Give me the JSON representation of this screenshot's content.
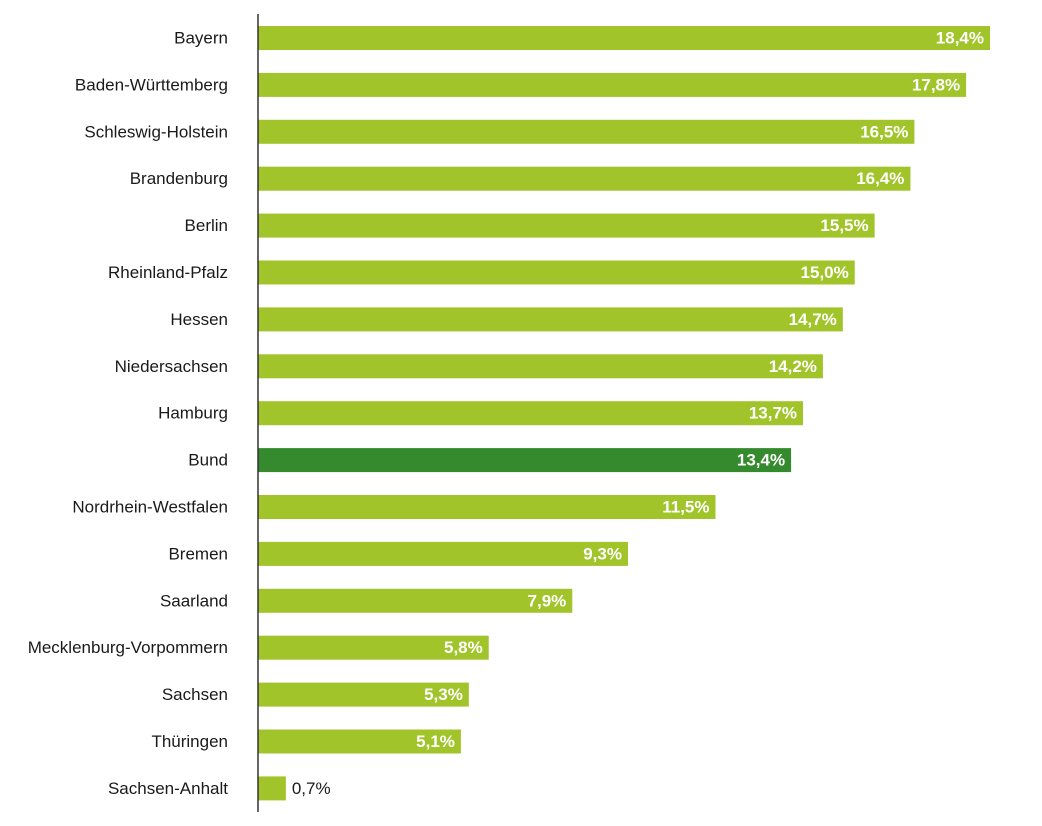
{
  "chart_data": {
    "type": "bar",
    "orientation": "horizontal",
    "categories": [
      "Bayern",
      "Baden-Württemberg",
      "Schleswig-Holstein",
      "Brandenburg",
      "Berlin",
      "Rheinland-Pfalz",
      "Hessen",
      "Niedersachsen",
      "Hamburg",
      "Bund",
      "Nordrhein-Westfalen",
      "Bremen",
      "Saarland",
      "Mecklenburg-Vorpommern",
      "Sachsen",
      "Thüringen",
      "Sachsen-Anhalt"
    ],
    "values": [
      18.4,
      17.8,
      16.5,
      16.4,
      15.5,
      15.0,
      14.7,
      14.2,
      13.7,
      13.4,
      11.5,
      9.3,
      7.9,
      5.8,
      5.3,
      5.1,
      0.7
    ],
    "value_labels": [
      "18,4%",
      "17,8%",
      "16,5%",
      "16,4%",
      "15,5%",
      "15,0%",
      "14,7%",
      "14,2%",
      "13,7%",
      "13,4%",
      "11,5%",
      "9,3%",
      "7,9%",
      "5,8%",
      "5,3%",
      "5,1%",
      "0,7%"
    ],
    "unit": "%",
    "highlight_category": "Bund",
    "xlim": [
      0,
      18.4
    ],
    "grid": false,
    "legend": "none",
    "colors": {
      "bar": "#a1c42a",
      "highlight": "#348a2c",
      "axis": "#333333",
      "label_inside": "#ffffff",
      "label_outside": "#1a1a1a"
    },
    "title": "",
    "xlabel": "",
    "ylabel": ""
  }
}
